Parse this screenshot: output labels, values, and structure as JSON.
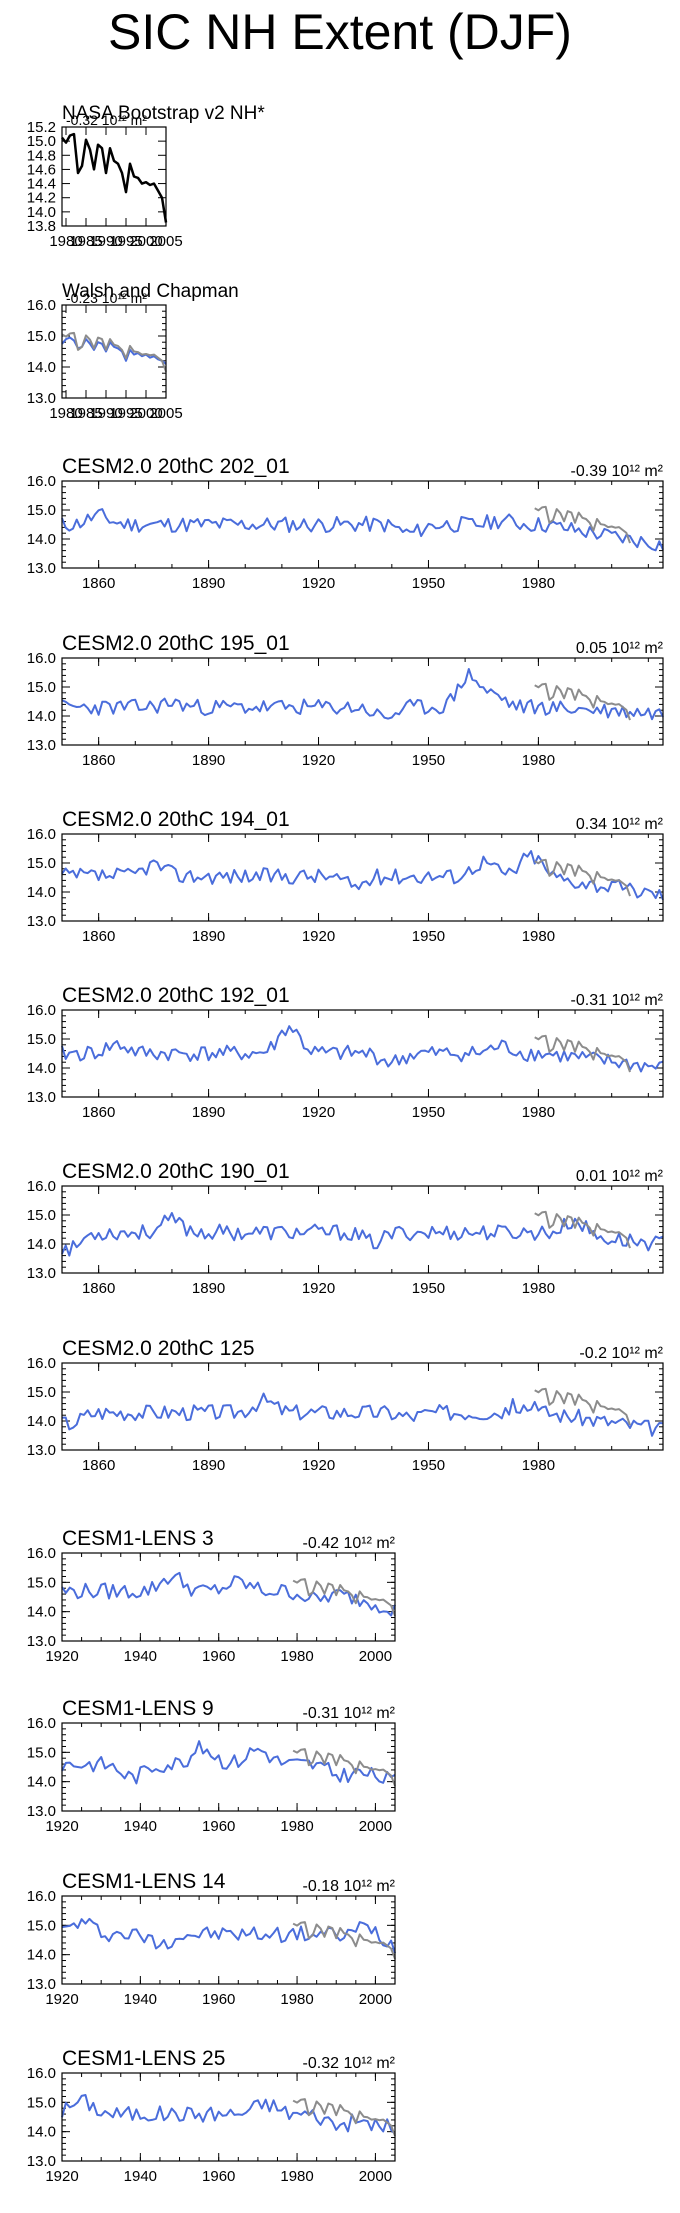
{
  "page": {
    "title": "SIC NH Extent (DJF)"
  },
  "colors": {
    "model": "#4a6ddb",
    "obs": "#8c8c8c",
    "obs_black": "#000000"
  },
  "chart_data": [
    {
      "type": "line",
      "title": "NASA Bootstrap v2 NH*",
      "trend_label": "-0.32 10¹² m²",
      "xlim": [
        1979,
        2005
      ],
      "ylim": [
        13.8,
        15.2
      ],
      "y_ticks": [
        "13.8",
        "14.0",
        "14.2",
        "14.4",
        "14.6",
        "14.8",
        "15.0",
        "15.2"
      ],
      "x_ticks": [
        "1980",
        "1985",
        "1990",
        "1995",
        "2000",
        "2005"
      ],
      "series": [
        {
          "name": "",
          "color": "#000000",
          "x_start": 1979,
          "values": [
            15.05,
            14.98,
            15.08,
            15.1,
            14.55,
            14.65,
            15.02,
            14.88,
            14.6,
            14.95,
            14.9,
            14.55,
            14.9,
            14.72,
            14.68,
            14.55,
            14.28,
            14.68,
            14.5,
            14.48,
            14.4,
            14.42,
            14.38,
            14.4,
            14.3,
            14.2,
            13.85
          ]
        }
      ]
    },
    {
      "type": "line",
      "title": "Walsh and Chapman",
      "trend_label": "-0.23 10¹² m²",
      "xlim": [
        1979,
        2005
      ],
      "ylim": [
        13.0,
        16.0
      ],
      "y_ticks": [
        "13.0",
        "14.0",
        "15.0",
        "16.0"
      ],
      "x_ticks": [
        "1980",
        "1985",
        "1990",
        "1995",
        "2000",
        "2005"
      ],
      "series": [
        {
          "name": "",
          "color": "#4a6ddb",
          "x_start": 1979,
          "values": [
            14.75,
            14.9,
            14.95,
            14.85,
            14.6,
            14.65,
            14.9,
            14.75,
            14.55,
            14.8,
            14.75,
            14.5,
            14.8,
            14.65,
            14.6,
            14.5,
            14.2,
            14.55,
            14.4,
            14.45,
            14.35,
            14.4,
            14.3,
            14.35,
            14.25,
            14.2,
            14.1
          ]
        },
        {
          "name": "",
          "color": "#8c8c8c",
          "x_start": 1979,
          "values": [
            15.05,
            14.98,
            15.08,
            15.1,
            14.55,
            14.65,
            15.02,
            14.88,
            14.6,
            14.95,
            14.9,
            14.55,
            14.9,
            14.72,
            14.68,
            14.55,
            14.28,
            14.68,
            14.5,
            14.48,
            14.4,
            14.42,
            14.38,
            14.4,
            14.3,
            14.2,
            13.85
          ]
        }
      ]
    },
    {
      "type": "line",
      "title": "CESM2.0 20thC 202_01",
      "trend_label": "-0.39 10¹² m²",
      "xlim": [
        1850,
        2014
      ],
      "ylim": [
        13.0,
        16.0
      ],
      "y_ticks": [
        "13.0",
        "14.0",
        "15.0",
        "16.0"
      ],
      "x_ticks": [
        "1860",
        "1890",
        "1920",
        "1950",
        "1980"
      ],
      "seed": 11,
      "model_base": 14.5,
      "model_end": 13.8,
      "bumps": [
        [
          1860,
          0.3
        ],
        [
          1945,
          -0.3
        ],
        [
          1970,
          0.15
        ]
      ]
    },
    {
      "type": "line",
      "title": "CESM2.0 20thC 195_01",
      "trend_label": "0.05 10¹² m²",
      "xlim": [
        1850,
        2014
      ],
      "ylim": [
        13.0,
        16.0
      ],
      "y_ticks": [
        "13.0",
        "14.0",
        "15.0",
        "16.0"
      ],
      "x_ticks": [
        "1860",
        "1890",
        "1920",
        "1950",
        "1980"
      ],
      "seed": 23,
      "model_base": 14.3,
      "model_end": 14.1,
      "bumps": [
        [
          1880,
          0.15
        ],
        [
          1938,
          -0.35
        ],
        [
          1961,
          1.1
        ],
        [
          1968,
          0.4
        ]
      ]
    },
    {
      "type": "line",
      "title": "CESM2.0 20thC 194_01",
      "trend_label": "0.34 10¹² m²",
      "xlim": [
        1850,
        2014
      ],
      "ylim": [
        13.0,
        16.0
      ],
      "y_ticks": [
        "13.0",
        "14.0",
        "15.0",
        "16.0"
      ],
      "x_ticks": [
        "1860",
        "1890",
        "1920",
        "1950",
        "1980"
      ],
      "seed": 37,
      "model_base": 14.55,
      "model_end": 13.9,
      "bumps": [
        [
          1875,
          0.4
        ],
        [
          1930,
          -0.35
        ],
        [
          1965,
          0.5
        ],
        [
          1978,
          0.7
        ]
      ]
    },
    {
      "type": "line",
      "title": "CESM2.0 20thC 192_01",
      "trend_label": "-0.31 10¹² m²",
      "xlim": [
        1850,
        2014
      ],
      "ylim": [
        13.0,
        16.0
      ],
      "y_ticks": [
        "13.0",
        "14.0",
        "15.0",
        "16.0"
      ],
      "x_ticks": [
        "1860",
        "1890",
        "1920",
        "1950",
        "1980"
      ],
      "seed": 41,
      "model_base": 14.5,
      "model_end": 14.0,
      "bumps": [
        [
          1865,
          0.3
        ],
        [
          1912,
          0.9
        ],
        [
          1940,
          -0.3
        ],
        [
          1970,
          0.25
        ]
      ]
    },
    {
      "type": "line",
      "title": "CESM2.0 20thC 190_01",
      "trend_label": "0.01 10¹² m²",
      "xlim": [
        1850,
        2014
      ],
      "ylim": [
        13.0,
        16.0
      ],
      "y_ticks": [
        "13.0",
        "14.0",
        "15.0",
        "16.0"
      ],
      "x_ticks": [
        "1860",
        "1890",
        "1920",
        "1950",
        "1980"
      ],
      "seed": 53,
      "model_base": 14.4,
      "model_end": 14.0,
      "bumps": [
        [
          1852,
          -0.6
        ],
        [
          1880,
          0.4
        ],
        [
          1935,
          -0.35
        ],
        [
          1990,
          0.5
        ]
      ]
    },
    {
      "type": "line",
      "title": "CESM2.0 20thC 125",
      "trend_label": "-0.2 10¹² m²",
      "xlim": [
        1850,
        2014
      ],
      "ylim": [
        13.0,
        16.0
      ],
      "y_ticks": [
        "13.0",
        "14.0",
        "15.0",
        "16.0"
      ],
      "x_ticks": [
        "1860",
        "1890",
        "1920",
        "1950",
        "1980"
      ],
      "seed": 67,
      "model_base": 14.3,
      "model_end": 13.7,
      "bumps": [
        [
          1852,
          -0.4
        ],
        [
          1905,
          0.4
        ],
        [
          1945,
          -0.15
        ],
        [
          1975,
          0.25
        ]
      ]
    },
    {
      "type": "line",
      "title": "CESM1-LENS 3",
      "trend_label": "-0.42 10¹² m²",
      "xlim": [
        1920,
        2005
      ],
      "ylim": [
        13.0,
        16.0
      ],
      "y_ticks": [
        "13.0",
        "14.0",
        "15.0",
        "16.0"
      ],
      "x_ticks": [
        "1920",
        "1940",
        "1960",
        "1980",
        "2000"
      ],
      "seed": 79,
      "model_base": 14.7,
      "model_end": 14.1,
      "bumps": [
        [
          1948,
          0.5
        ],
        [
          1965,
          0.3
        ],
        [
          1985,
          -0.3
        ]
      ]
    },
    {
      "type": "line",
      "title": "CESM1-LENS 9",
      "trend_label": "-0.31 10¹² m²",
      "xlim": [
        1920,
        2005
      ],
      "ylim": [
        13.0,
        16.0
      ],
      "y_ticks": [
        "13.0",
        "14.0",
        "15.0",
        "16.0"
      ],
      "x_ticks": [
        "1920",
        "1940",
        "1960",
        "1980",
        "2000"
      ],
      "seed": 83,
      "model_base": 14.6,
      "model_end": 14.0,
      "bumps": [
        [
          1938,
          -0.45
        ],
        [
          1956,
          0.55
        ],
        [
          1970,
          0.5
        ],
        [
          1990,
          -0.3
        ]
      ]
    },
    {
      "type": "line",
      "title": "CESM1-LENS 14",
      "trend_label": "-0.18 10¹² m²",
      "xlim": [
        1920,
        2005
      ],
      "ylim": [
        13.0,
        16.0
      ],
      "y_ticks": [
        "13.0",
        "14.0",
        "15.0",
        "16.0"
      ],
      "x_ticks": [
        "1920",
        "1940",
        "1960",
        "1980",
        "2000"
      ],
      "seed": 97,
      "model_base": 14.7,
      "model_end": 14.3,
      "bumps": [
        [
          1925,
          0.4
        ],
        [
          1945,
          -0.3
        ],
        [
          1998,
          0.5
        ]
      ]
    },
    {
      "type": "line",
      "title": "CESM1-LENS 25",
      "trend_label": "-0.32 10¹² m²",
      "xlim": [
        1920,
        2005
      ],
      "ylim": [
        13.0,
        16.0
      ],
      "y_ticks": [
        "13.0",
        "14.0",
        "15.0",
        "16.0"
      ],
      "x_ticks": [
        "1920",
        "1940",
        "1960",
        "1980",
        "2000"
      ],
      "seed": 101,
      "model_base": 14.6,
      "model_end": 14.1,
      "bumps": [
        [
          1925,
          0.45
        ],
        [
          1972,
          0.35
        ],
        [
          1990,
          -0.3
        ]
      ]
    }
  ]
}
